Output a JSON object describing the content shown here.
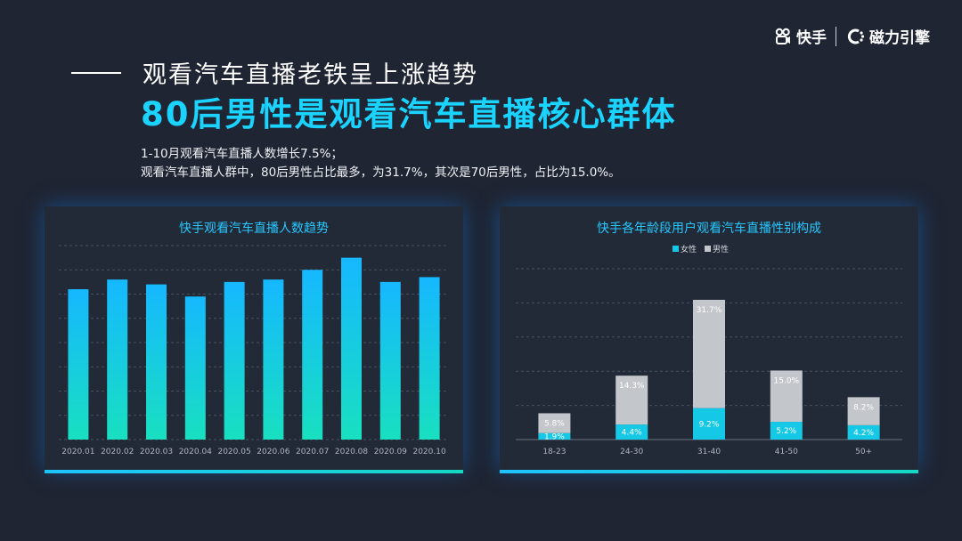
{
  "brand": {
    "kuaishou": "快手",
    "cili": "磁力引擎"
  },
  "header": {
    "title1": "观看汽车直播老铁呈上涨趋势",
    "title2": "80后男性是观看汽车直播核心群体",
    "desc_line1": "1-10月观看汽车直播人数增长7.5%；",
    "desc_line2": "观看汽车直播人群中，80后男性占比最多，为31.7%，其次是70后男性，占比为15.0%。"
  },
  "chart_data": [
    {
      "type": "bar",
      "title": "快手观看汽车直播人数趋势",
      "categories": [
        "2020.01",
        "2020.02",
        "2020.03",
        "2020.04",
        "2020.05",
        "2020.06",
        "2020.07",
        "2020.08",
        "2020.09",
        "2020.10"
      ],
      "values": [
        62,
        66,
        64,
        59,
        65,
        66,
        70,
        75,
        65,
        67
      ],
      "ylim": [
        0,
        80
      ],
      "grid": true,
      "colors": {
        "top": "#16b8ff",
        "bottom": "#18e0c0"
      }
    },
    {
      "type": "bar",
      "stacked": true,
      "title": "快手各年龄段用户观看汽车直播性别构成",
      "categories": [
        "18-23",
        "24-30",
        "31-40",
        "41-50",
        "50+"
      ],
      "series": [
        {
          "name": "女性",
          "values": [
            1.9,
            4.4,
            9.2,
            5.2,
            4.2
          ],
          "labels": [
            "1.9%",
            "4.4%",
            "9.2%",
            "5.2%",
            "4.2%"
          ],
          "color": "#14c8e6"
        },
        {
          "name": "男性",
          "values": [
            5.8,
            14.3,
            31.7,
            15.0,
            8.2
          ],
          "labels": [
            "5.8%",
            "14.3%",
            "31.7%",
            "15.0%",
            "8.2%"
          ],
          "color": "#c3c6cb"
        }
      ],
      "ylim": [
        0,
        50
      ],
      "grid": true,
      "legend": "top-center"
    }
  ]
}
